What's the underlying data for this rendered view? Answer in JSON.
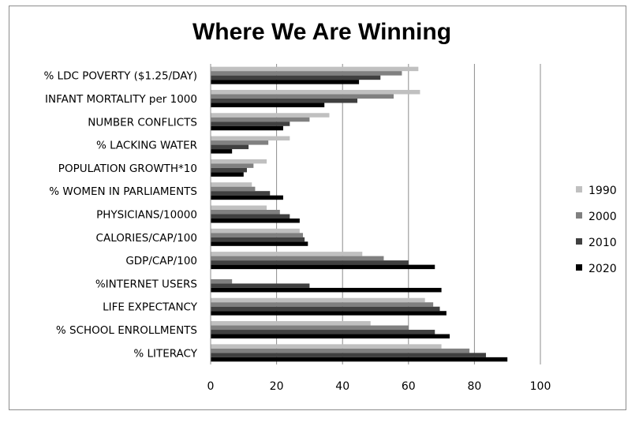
{
  "chart_data": {
    "type": "bar",
    "orientation": "horizontal",
    "title": "Where We Are Winning",
    "xlabel": "",
    "ylabel": "",
    "xlim": [
      0,
      100
    ],
    "x_ticks": [
      0,
      20,
      40,
      60,
      80,
      100
    ],
    "grid": "vertical major gridlines",
    "legend_position": "right",
    "categories": [
      "% LDC POVERTY ($1.25/DAY)",
      "INFANT MORTALITY per 1000",
      "NUMBER CONFLICTS",
      "% LACKING WATER",
      "POPULATION GROWTH*10",
      "% WOMEN IN PARLIAMENTS",
      "PHYSICIANS/10000",
      "CALORIES/CAP/100",
      "GDP/CAP/100",
      "%INTERNET USERS",
      "LIFE EXPECTANCY",
      "% SCHOOL ENROLLMENTS",
      "% LITERACY"
    ],
    "series": [
      {
        "name": "1990",
        "color": "#c0c0c0",
        "values": [
          63,
          63.5,
          36,
          24,
          17,
          12.5,
          17,
          27,
          46,
          0,
          65,
          48.5,
          70
        ]
      },
      {
        "name": "2000",
        "color": "#808080",
        "values": [
          58,
          55.5,
          30,
          17.5,
          13,
          13.5,
          21,
          28,
          52.5,
          6.5,
          67.5,
          60,
          78.5
        ]
      },
      {
        "name": "2010",
        "color": "#404040",
        "values": [
          51.5,
          44.5,
          24,
          11.5,
          11,
          18,
          24,
          28.5,
          60,
          30,
          69.5,
          68,
          83.5
        ]
      },
      {
        "name": "2020",
        "color": "#000000",
        "values": [
          45,
          34.5,
          22,
          6.5,
          10,
          22,
          27,
          29.5,
          68,
          70,
          71.5,
          72.5,
          90
        ]
      }
    ]
  }
}
